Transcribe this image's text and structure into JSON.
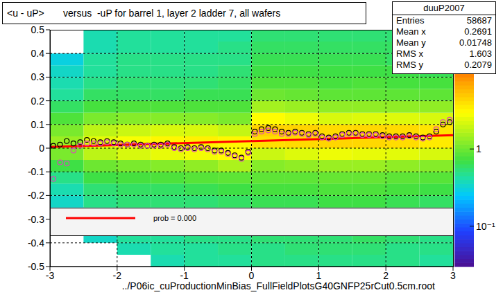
{
  "chart_data": {
    "type": "scatter",
    "title": "<u - uP>       versus  -uP for barrel 1, layer 2 ladder 7, all wafers",
    "x_label": "../P06ic_cuProductionMinBias_FullFieldPlotsG40GNFP25rCut0.5cm.root",
    "xlim": [
      -3,
      3
    ],
    "ylim": [
      -0.5,
      0.5
    ],
    "xticks": [
      -3,
      -2,
      -1,
      0,
      1,
      2,
      3
    ],
    "yticks": [
      -0.5,
      -0.4,
      -0.3,
      -0.2,
      -0.1,
      0,
      0.1,
      0.2,
      0.3,
      0.4,
      0.5
    ],
    "grid": true,
    "x": [
      -2.95,
      -2.85,
      -2.75,
      -2.65,
      -2.55,
      -2.45,
      -2.35,
      -2.25,
      -2.15,
      -2.05,
      -1.95,
      -1.85,
      -1.75,
      -1.65,
      -1.55,
      -1.45,
      -1.35,
      -1.25,
      -1.15,
      -1.05,
      -0.95,
      -0.85,
      -0.75,
      -0.65,
      -0.55,
      -0.45,
      -0.35,
      -0.25,
      -0.15,
      -0.05,
      0.05,
      0.15,
      0.25,
      0.35,
      0.45,
      0.55,
      0.65,
      0.75,
      0.85,
      0.95,
      1.05,
      1.15,
      1.25,
      1.35,
      1.45,
      1.55,
      1.65,
      1.75,
      1.85,
      1.95,
      2.05,
      2.15,
      2.25,
      2.35,
      2.45,
      2.55,
      2.65,
      2.75,
      2.85,
      2.95
    ],
    "series": [
      {
        "type": "scatter",
        "color": "#000000",
        "marker": "circle",
        "values": [
          0.01,
          0.015,
          0.03,
          0.02,
          0.025,
          0.035,
          0.03,
          0.025,
          0.03,
          0.025,
          0.02,
          0.015,
          0.02,
          0.015,
          0.01,
          0.015,
          0.015,
          0.02,
          0.005,
          0.0,
          0.005,
          0.0,
          0.005,
          0.0,
          -0.01,
          -0.01,
          -0.02,
          -0.03,
          -0.04,
          -0.015,
          0.07,
          0.08,
          0.085,
          0.08,
          0.07,
          0.065,
          0.07,
          0.065,
          0.06,
          0.065,
          0.05,
          0.045,
          0.05,
          0.06,
          0.065,
          0.065,
          0.06,
          0.06,
          0.06,
          0.055,
          0.05,
          0.05,
          0.05,
          0.055,
          0.05,
          0.045,
          0.05,
          0.07,
          0.1,
          0.11
        ]
      },
      {
        "type": "scatter",
        "color": "#e040c0",
        "marker": "circle",
        "values": [
          -0.13,
          -0.06,
          -0.065,
          -0.01,
          0.01,
          0.02,
          0.02,
          0.02,
          0.025,
          0.02,
          0.015,
          0.015,
          0.015,
          0.01,
          0.01,
          0.01,
          0.01,
          0.015,
          0.0,
          -0.005,
          0.0,
          -0.005,
          0.0,
          -0.005,
          -0.015,
          -0.015,
          -0.025,
          -0.035,
          -0.045,
          -0.02,
          0.06,
          0.07,
          0.075,
          0.07,
          0.06,
          0.06,
          0.065,
          0.06,
          0.055,
          0.06,
          0.045,
          0.04,
          0.045,
          0.055,
          0.06,
          0.06,
          0.055,
          0.055,
          0.055,
          0.05,
          0.045,
          0.045,
          0.045,
          0.05,
          0.045,
          0.04,
          0.045,
          0.08,
          0.11,
          0.12
        ]
      },
      {
        "type": "line",
        "name": "prob = 0.000",
        "color": "#ff0000",
        "line_style": "solid",
        "x": [
          -3,
          3
        ],
        "values": [
          0.005,
          0.055
        ]
      }
    ],
    "heatmap": {
      "x_edges": [
        -3,
        -2.5,
        -2,
        -1.5,
        -1,
        -0.5,
        0,
        0.5,
        1,
        1.5,
        2,
        2.5,
        3
      ],
      "y_edges": [
        -0.5,
        -0.45,
        -0.4,
        -0.35,
        -0.3,
        -0.25,
        -0.2,
        -0.15,
        -0.1,
        -0.05,
        0,
        0.05,
        0.1,
        0.15,
        0.2,
        0.25,
        0.3,
        0.35,
        0.4,
        0.45,
        0.5
      ],
      "values": [
        [
          null,
          null,
          null,
          null,
          0.3,
          0.35,
          0.4,
          0.5,
          0.7,
          1.1,
          1.4,
          1.1,
          0.8,
          0.6,
          0.45,
          0.4,
          0.35,
          0.3,
          null,
          null
        ],
        [
          null,
          null,
          0.35,
          0.4,
          0.45,
          0.5,
          0.55,
          0.7,
          1.0,
          1.8,
          2.4,
          1.8,
          1.1,
          0.75,
          0.6,
          0.5,
          0.45,
          0.45,
          0.4,
          0.4
        ],
        [
          null,
          0.4,
          0.45,
          0.5,
          0.5,
          0.55,
          0.6,
          0.75,
          1.1,
          2.2,
          2.8,
          2.0,
          1.2,
          0.8,
          0.6,
          0.55,
          0.5,
          0.5,
          0.45,
          0.45
        ],
        [
          0.4,
          0.45,
          0.45,
          0.5,
          0.5,
          0.55,
          0.6,
          0.8,
          1.2,
          2.5,
          3.2,
          2.2,
          1.2,
          0.8,
          0.6,
          0.55,
          0.5,
          0.5,
          0.45,
          0.45
        ],
        [
          0.45,
          0.45,
          0.5,
          0.5,
          0.55,
          0.55,
          0.65,
          0.85,
          1.3,
          2.7,
          3.4,
          2.2,
          1.2,
          0.8,
          0.65,
          0.55,
          0.5,
          0.5,
          0.45,
          0.45
        ],
        [
          0.45,
          0.5,
          0.5,
          0.55,
          0.55,
          0.6,
          0.7,
          0.9,
          1.6,
          3.0,
          3.2,
          1.9,
          1.1,
          0.8,
          0.65,
          0.6,
          0.55,
          0.5,
          0.5,
          0.45
        ],
        [
          0.5,
          0.5,
          0.55,
          0.55,
          0.6,
          0.65,
          0.75,
          0.9,
          1.2,
          2.0,
          4.0,
          4.6,
          3.0,
          1.5,
          1.0,
          0.8,
          0.7,
          0.65,
          0.6,
          0.55
        ],
        [
          0.5,
          0.55,
          0.55,
          0.6,
          0.6,
          0.65,
          0.75,
          0.9,
          1.3,
          2.3,
          4.2,
          4.5,
          2.6,
          1.4,
          0.95,
          0.8,
          0.7,
          0.65,
          0.6,
          0.55
        ],
        [
          0.5,
          0.55,
          0.55,
          0.6,
          0.65,
          0.7,
          0.8,
          0.95,
          1.4,
          2.6,
          4.4,
          4.2,
          2.2,
          1.3,
          0.9,
          0.75,
          0.7,
          0.65,
          0.6,
          0.55
        ],
        [
          0.5,
          0.55,
          0.6,
          0.6,
          0.65,
          0.7,
          0.8,
          0.95,
          1.4,
          2.5,
          4.3,
          4.3,
          2.3,
          1.3,
          0.9,
          0.8,
          0.7,
          0.65,
          0.6,
          0.55
        ],
        [
          0.5,
          0.5,
          0.55,
          0.6,
          0.6,
          0.65,
          0.75,
          0.9,
          1.3,
          2.4,
          4.1,
          4.2,
          2.3,
          1.3,
          0.9,
          0.75,
          0.7,
          0.6,
          0.6,
          0.55
        ],
        [
          0.45,
          0.5,
          0.5,
          0.55,
          0.6,
          0.6,
          0.7,
          0.85,
          1.2,
          2.2,
          3.6,
          3.8,
          2.2,
          1.3,
          0.9,
          0.75,
          0.65,
          0.6,
          0.55,
          0.5
        ]
      ]
    },
    "colorbar": {
      "range": [
        0.03,
        35
      ],
      "ticks": [
        {
          "value": 0.1,
          "label": "10⁻¹"
        },
        {
          "value": 1,
          "label": "1"
        }
      ]
    },
    "stats": {
      "title": "duuP2007",
      "rows": [
        [
          "Entries",
          58687
        ],
        [
          "Mean x",
          0.2691
        ],
        [
          "Mean y",
          0.01748
        ],
        [
          "RMS x",
          1.603
        ],
        [
          "RMS y",
          0.2079
        ]
      ]
    }
  }
}
